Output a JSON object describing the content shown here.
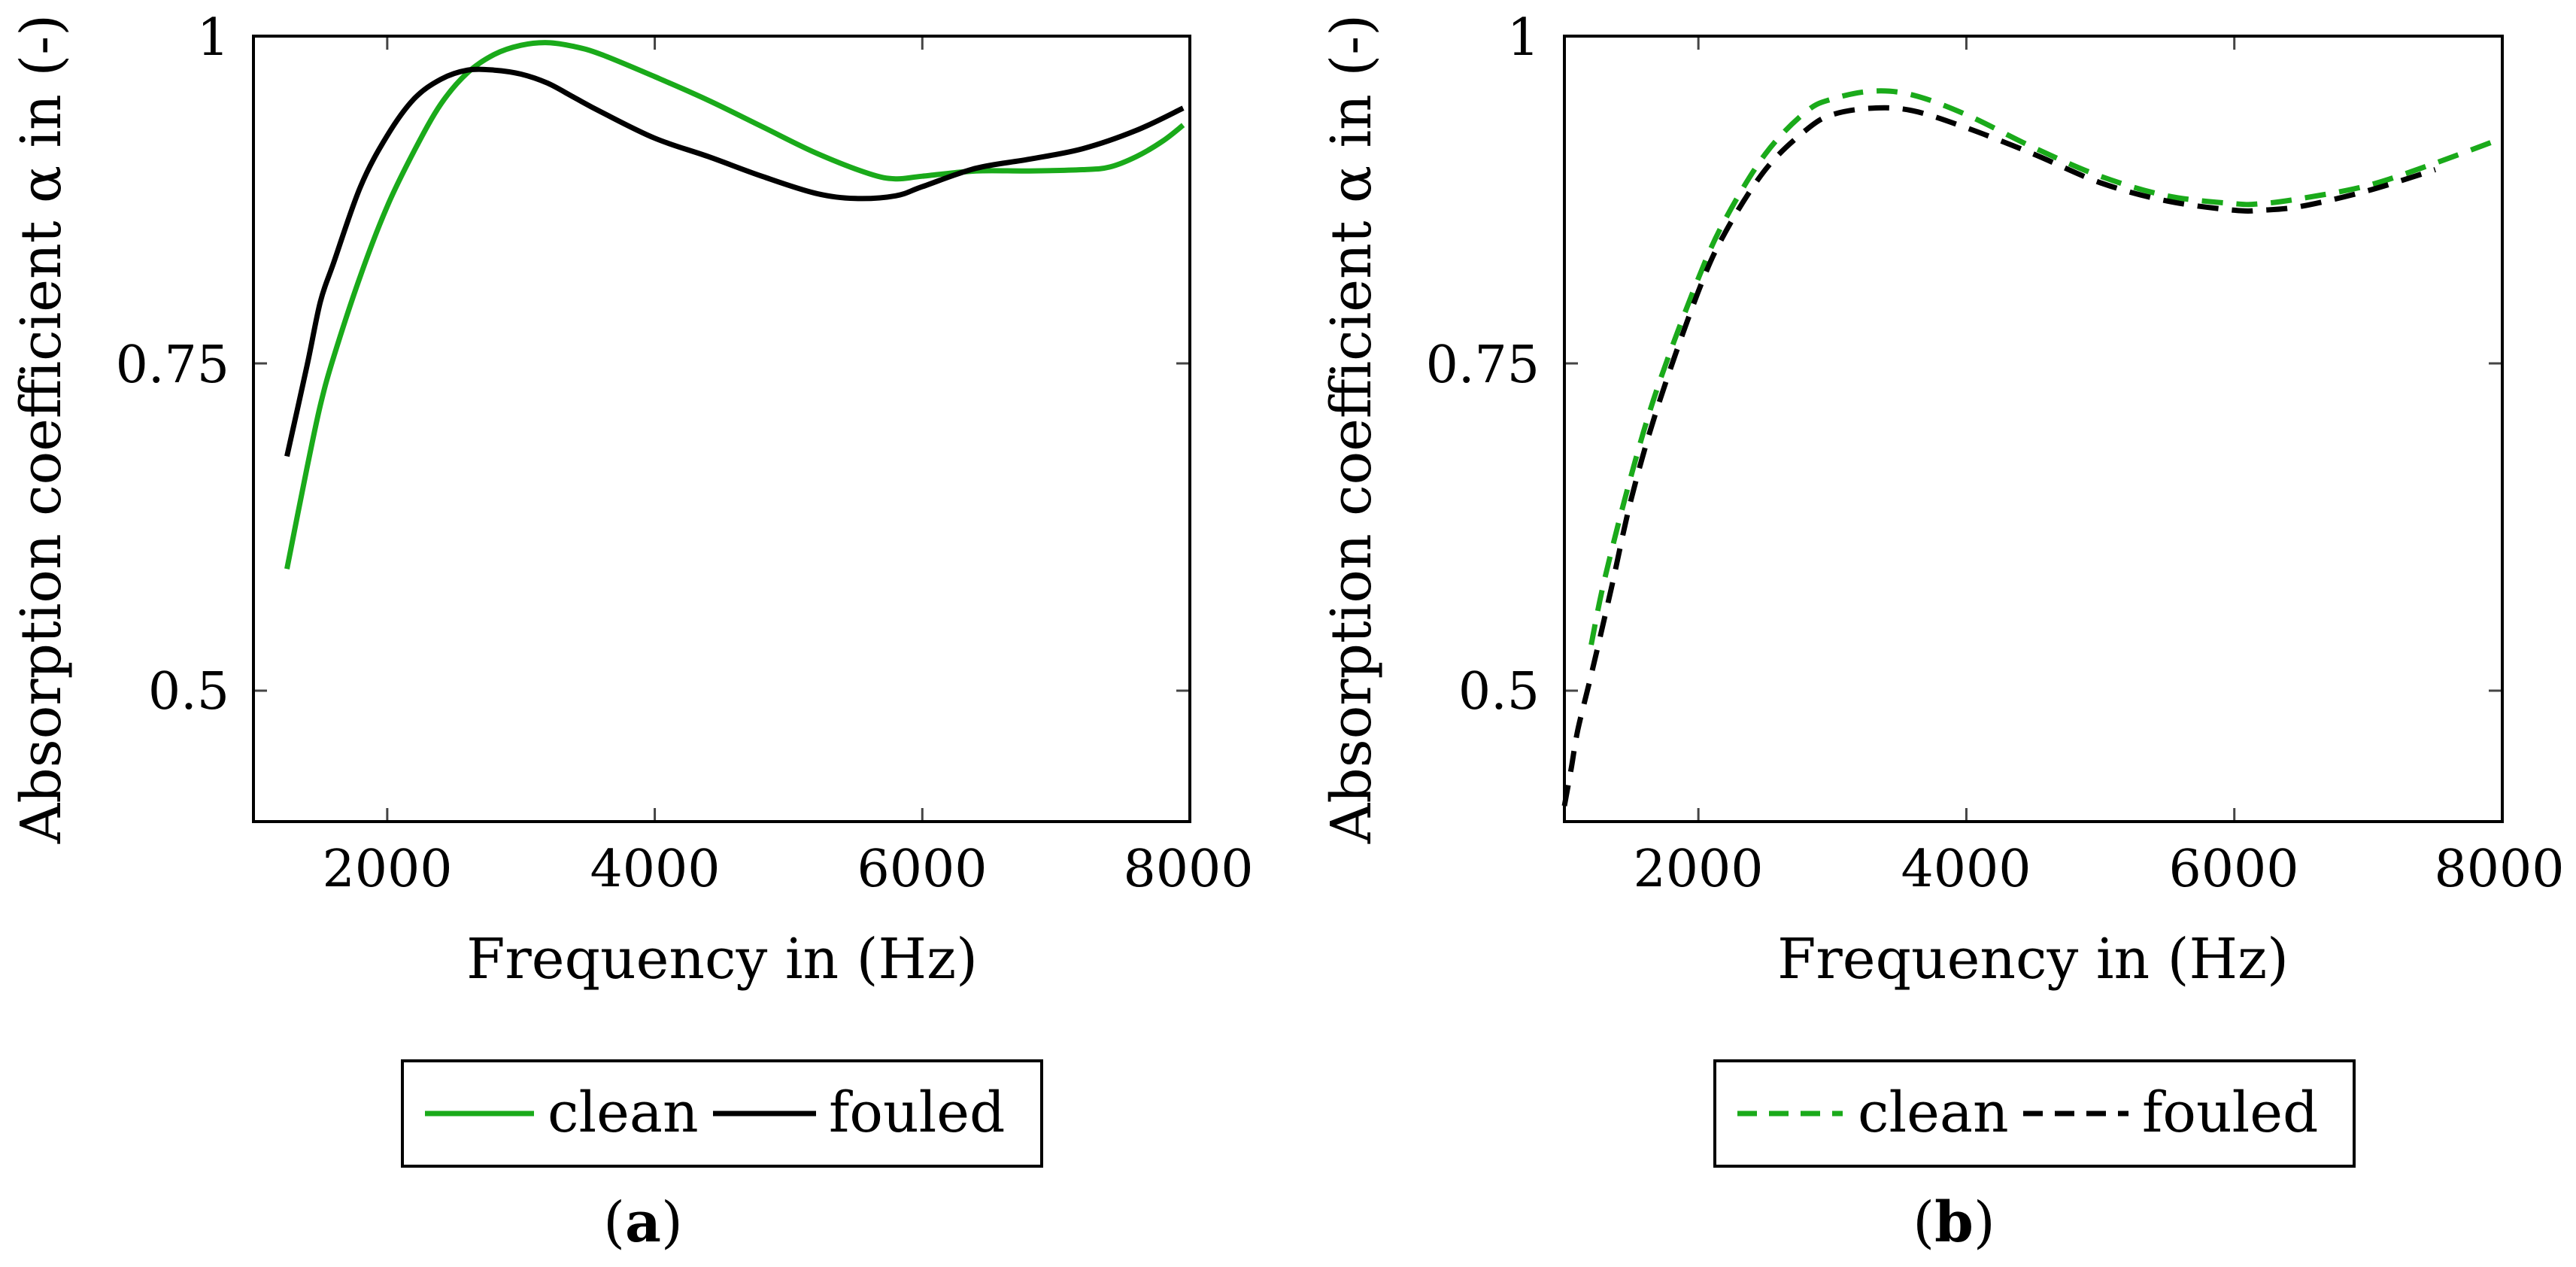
{
  "colors": {
    "clean": "#1aaa1a",
    "fouled": "#000000"
  },
  "chart_data": [
    {
      "type": "line",
      "panel": "a",
      "caption_open": "(",
      "caption_letter": "a",
      "caption_close": ")",
      "xlabel": "Frequency in (Hz)",
      "ylabel": "Absorption coefficient α in (-)",
      "xlim": [
        1000,
        8000
      ],
      "ylim": [
        0.4,
        1.0
      ],
      "xticks": [
        2000,
        4000,
        6000,
        8000
      ],
      "xtick_labels": [
        "2000",
        "4000",
        "6000",
        "8000"
      ],
      "yticks": [
        0.5,
        0.75,
        1.0
      ],
      "ytick_labels": [
        "0.5",
        "0.75",
        "1"
      ],
      "legend": [
        "clean",
        "fouled"
      ],
      "legend_position": "bottom-center",
      "series": [
        {
          "name": "clean",
          "color": "#1aaa1a",
          "dash": "solid",
          "x": [
            1250,
            1400,
            1500,
            1600,
            1800,
            2000,
            2200,
            2400,
            2600,
            2800,
            3000,
            3200,
            3400,
            3600,
            4000,
            4400,
            4800,
            5200,
            5600,
            5800,
            6000,
            6400,
            6800,
            7200,
            7400,
            7600,
            7800,
            7950
          ],
          "y": [
            0.593,
            0.67,
            0.718,
            0.755,
            0.817,
            0.87,
            0.912,
            0.948,
            0.972,
            0.986,
            0.993,
            0.995,
            0.992,
            0.986,
            0.969,
            0.951,
            0.931,
            0.911,
            0.895,
            0.891,
            0.893,
            0.897,
            0.897,
            0.898,
            0.9,
            0.908,
            0.92,
            0.932
          ]
        },
        {
          "name": "fouled",
          "color": "#000000",
          "dash": "solid",
          "x": [
            1250,
            1400,
            1500,
            1600,
            1800,
            2000,
            2200,
            2400,
            2600,
            2800,
            3000,
            3200,
            3400,
            3600,
            4000,
            4400,
            4800,
            5200,
            5500,
            5800,
            6000,
            6400,
            6800,
            7200,
            7600,
            7950
          ],
          "y": [
            0.679,
            0.748,
            0.797,
            0.827,
            0.885,
            0.924,
            0.952,
            0.967,
            0.974,
            0.974,
            0.971,
            0.964,
            0.953,
            0.942,
            0.922,
            0.908,
            0.893,
            0.88,
            0.876,
            0.878,
            0.885,
            0.899,
            0.906,
            0.914,
            0.928,
            0.945
          ]
        }
      ]
    },
    {
      "type": "line",
      "panel": "b",
      "caption_open": "(",
      "caption_letter": "b",
      "caption_close": ")",
      "xlabel": "Frequency in (Hz)",
      "ylabel": "Absorption coefficient α in (-)",
      "xlim": [
        1000,
        8000
      ],
      "ylim": [
        0.4,
        1.0
      ],
      "xticks": [
        2000,
        4000,
        6000,
        8000
      ],
      "xtick_labels": [
        "2000",
        "4000",
        "6000",
        "8000"
      ],
      "yticks": [
        0.5,
        0.75,
        1.0
      ],
      "ytick_labels": [
        "0.5",
        "0.75",
        "1"
      ],
      "legend": [
        "clean",
        "fouled"
      ],
      "legend_position": "bottom-center",
      "series": [
        {
          "name": "clean",
          "color": "#1aaa1a",
          "dash": "dashed",
          "x": [
            1200,
            1300,
            1500,
            1700,
            2000,
            2200,
            2500,
            2800,
            3000,
            3300,
            3600,
            4000,
            4500,
            5000,
            5500,
            6000,
            6200,
            6500,
            7000,
            7500,
            8000
          ],
          "y": [
            0.535,
            0.585,
            0.665,
            0.733,
            0.815,
            0.86,
            0.91,
            0.942,
            0.952,
            0.958,
            0.955,
            0.94,
            0.915,
            0.893,
            0.878,
            0.872,
            0.872,
            0.876,
            0.886,
            0.903,
            0.922
          ]
        },
        {
          "name": "fouled",
          "color": "#000000",
          "dash": "dashed",
          "x": [
            1000,
            1050,
            1100,
            1200,
            1350,
            1500,
            1700,
            2000,
            2200,
            2500,
            2800,
            3000,
            3300,
            3600,
            4000,
            4500,
            5000,
            5500,
            6000,
            6200,
            6500,
            7000,
            7500
          ],
          "y": [
            0.412,
            0.44,
            0.47,
            0.512,
            0.578,
            0.647,
            0.718,
            0.805,
            0.85,
            0.898,
            0.928,
            0.94,
            0.945,
            0.943,
            0.93,
            0.91,
            0.888,
            0.874,
            0.867,
            0.867,
            0.87,
            0.882,
            0.898
          ]
        }
      ]
    }
  ]
}
